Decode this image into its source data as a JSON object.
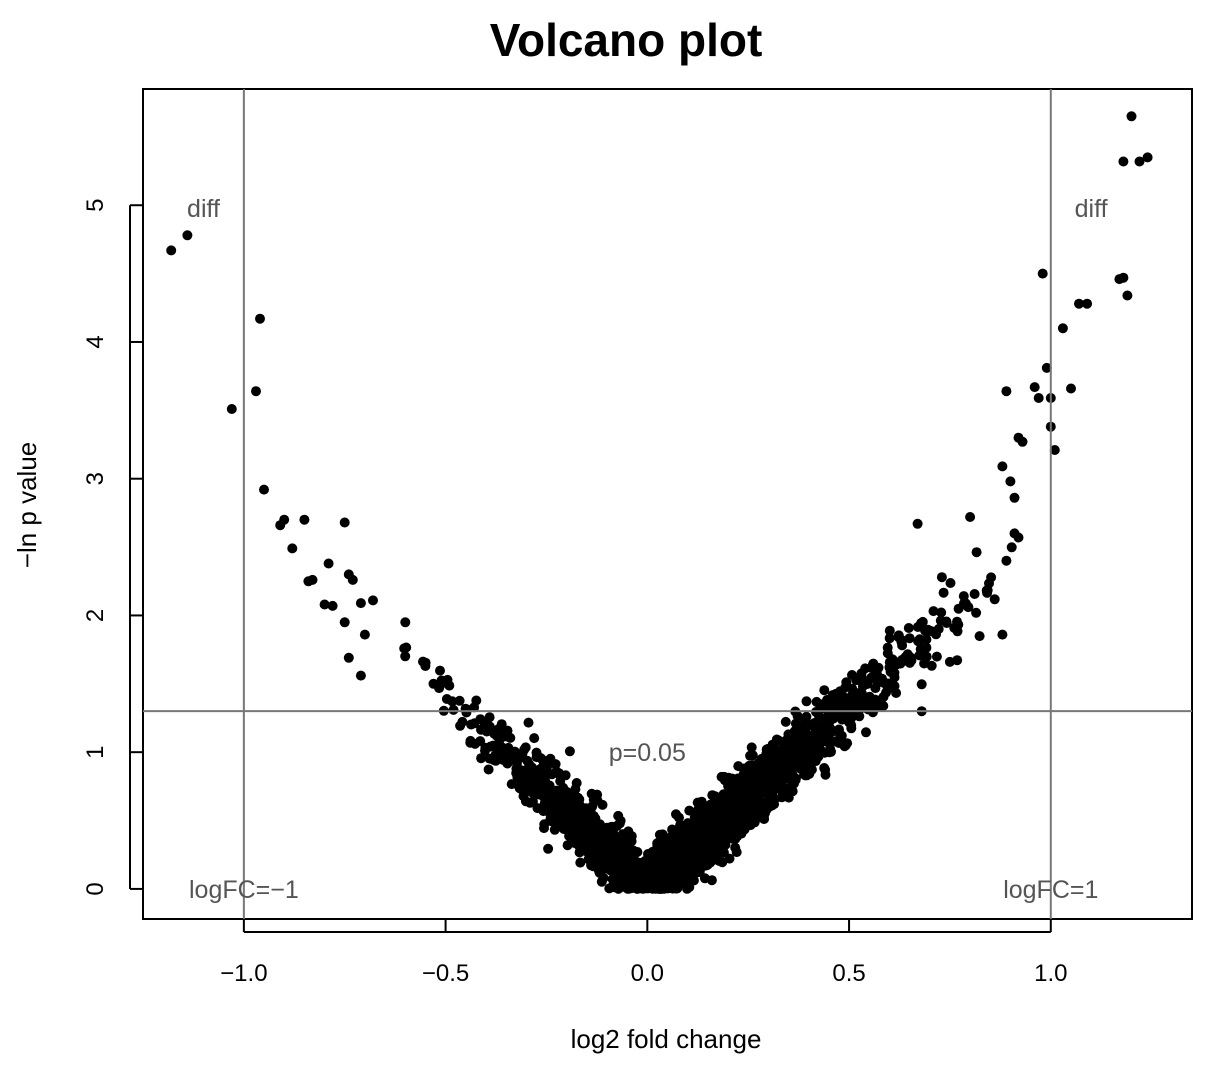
{
  "chart_data": {
    "type": "scatter",
    "title": "Volcano plot",
    "xlabel": "log2 fold change",
    "ylabel": "−ln p value",
    "xlim": [
      -1.25,
      1.35
    ],
    "ylim": [
      -0.22,
      5.85
    ],
    "x_ticks": [
      -1.0,
      -0.5,
      0.0,
      0.5,
      1.0
    ],
    "x_tick_labels": [
      "−1.0",
      "−0.5",
      "0.0",
      "0.5",
      "1.0"
    ],
    "y_ticks": [
      0,
      1,
      2,
      3,
      4,
      5
    ],
    "y_tick_labels": [
      "0",
      "1",
      "2",
      "3",
      "4",
      "5"
    ],
    "grid": false,
    "legend": "none",
    "point_color": "#000000",
    "reference_lines": [
      {
        "orientation": "vertical",
        "value": -1.0
      },
      {
        "orientation": "vertical",
        "value": 1.0
      },
      {
        "orientation": "horizontal",
        "value": 1.3
      }
    ],
    "annotations": [
      {
        "text": "diff",
        "x": -1.1,
        "y": 4.98
      },
      {
        "text": "diff",
        "x": 1.1,
        "y": 4.98
      },
      {
        "text": "p=0.05",
        "x": 0.0,
        "y": 1.0
      },
      {
        "text": "logFC=−1",
        "x": -1.0,
        "y": 0.0
      },
      {
        "text": "logFC=1",
        "x": 1.0,
        "y": 0.0
      }
    ],
    "notable_points": [
      [
        -1.18,
        4.67
      ],
      [
        -1.14,
        4.78
      ],
      [
        -0.96,
        4.17
      ],
      [
        -0.97,
        3.64
      ],
      [
        -1.03,
        3.51
      ],
      [
        -0.95,
        2.92
      ],
      [
        -0.9,
        2.7
      ],
      [
        -0.91,
        2.66
      ],
      [
        -0.85,
        2.7
      ],
      [
        -0.88,
        2.49
      ],
      [
        -0.83,
        2.26
      ],
      [
        -0.84,
        2.25
      ],
      [
        -0.79,
        2.38
      ],
      [
        -0.75,
        2.68
      ],
      [
        -0.74,
        2.3
      ],
      [
        -0.73,
        2.26
      ],
      [
        -0.8,
        2.08
      ],
      [
        -0.78,
        2.07
      ],
      [
        -0.71,
        2.09
      ],
      [
        -0.68,
        2.11
      ],
      [
        -0.75,
        1.95
      ],
      [
        -0.74,
        1.69
      ],
      [
        -0.7,
        1.86
      ],
      [
        -0.6,
        1.95
      ],
      [
        -0.71,
        1.56
      ],
      [
        -0.53,
        1.5
      ],
      [
        -0.55,
        1.63
      ],
      [
        1.2,
        5.65
      ],
      [
        1.24,
        5.35
      ],
      [
        1.18,
        5.32
      ],
      [
        1.22,
        5.32
      ],
      [
        0.98,
        4.5
      ],
      [
        1.18,
        4.47
      ],
      [
        1.17,
        4.46
      ],
      [
        1.19,
        4.34
      ],
      [
        1.07,
        4.28
      ],
      [
        1.09,
        4.28
      ],
      [
        1.03,
        4.1
      ],
      [
        0.99,
        3.81
      ],
      [
        1.05,
        3.66
      ],
      [
        0.96,
        3.67
      ],
      [
        0.97,
        3.59
      ],
      [
        1.0,
        3.59
      ],
      [
        0.89,
        3.64
      ],
      [
        1.0,
        3.38
      ],
      [
        1.01,
        3.21
      ],
      [
        0.93,
        3.27
      ],
      [
        0.92,
        3.3
      ],
      [
        0.88,
        3.09
      ],
      [
        0.91,
        2.86
      ],
      [
        0.9,
        2.98
      ],
      [
        0.91,
        2.6
      ],
      [
        0.92,
        2.57
      ],
      [
        0.89,
        2.4
      ],
      [
        0.88,
        1.86
      ],
      [
        0.75,
        1.66
      ],
      [
        0.68,
        1.3
      ],
      [
        0.67,
        2.67
      ],
      [
        0.73,
        2.28
      ],
      [
        0.8,
        2.72
      ]
    ]
  }
}
